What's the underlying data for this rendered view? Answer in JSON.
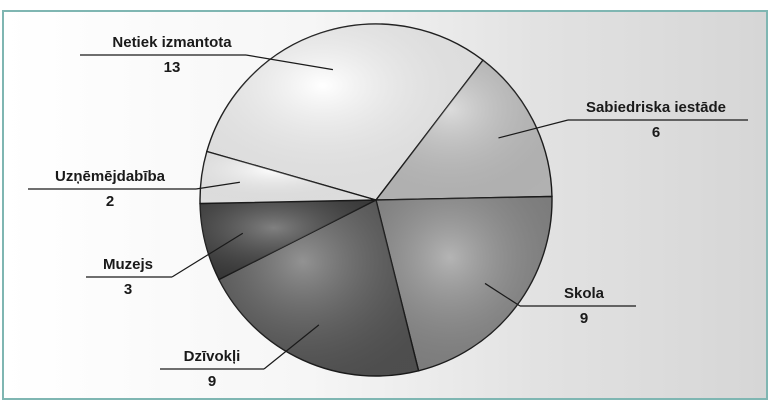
{
  "chart_data": {
    "type": "pie",
    "categories": [
      "Netiek izmantota",
      "Sabiedriska iestāde",
      "Skola",
      "Dzīvokļi",
      "Muzejs",
      "Uzņēmējdabība"
    ],
    "values": [
      13,
      6,
      9,
      9,
      3,
      2
    ],
    "colors": [
      "#ffffff",
      "#c9c9c9",
      "#8c8c8c",
      "#585858",
      "#3c3c3c",
      "#fdfdfd"
    ],
    "legend": "labels-around"
  }
}
